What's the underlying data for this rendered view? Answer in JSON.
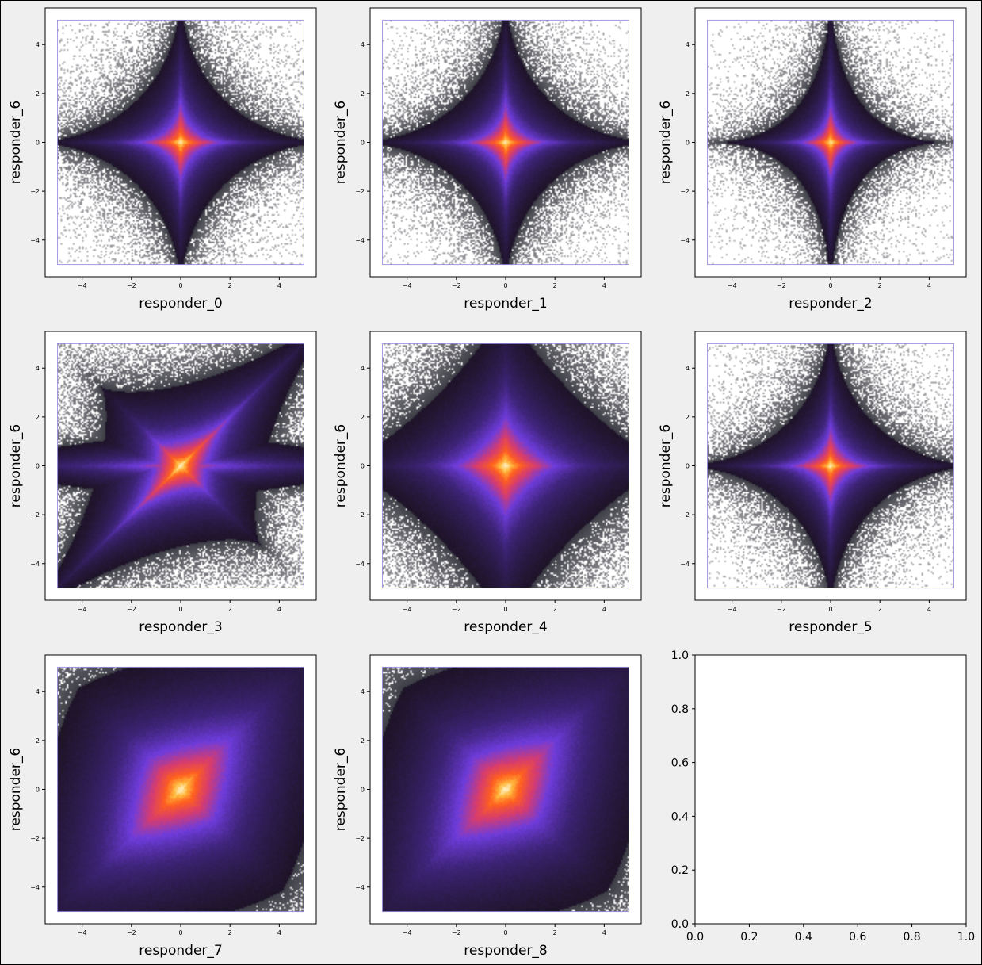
{
  "chart_data": [
    {
      "type": "scatter",
      "xlabel": "responder_0",
      "ylabel": "responder_6",
      "xlim": [
        -5.5,
        5.5
      ],
      "ylim": [
        -5.5,
        5.5
      ],
      "xticks": [
        "−4",
        "−2",
        "0",
        "2",
        "4"
      ],
      "yticks": [
        "−4",
        "−2",
        "0",
        "2",
        "4"
      ],
      "shape": "star",
      "clip": 5,
      "correlation": 0.0
    },
    {
      "type": "scatter",
      "xlabel": "responder_1",
      "ylabel": "responder_6",
      "xlim": [
        -5.5,
        5.5
      ],
      "ylim": [
        -5.5,
        5.5
      ],
      "xticks": [
        "−4",
        "−2",
        "0",
        "2",
        "4"
      ],
      "yticks": [
        "−4",
        "−2",
        "0",
        "2",
        "4"
      ],
      "shape": "star",
      "clip": 5,
      "correlation": 0.0
    },
    {
      "type": "scatter",
      "xlabel": "responder_2",
      "ylabel": "responder_6",
      "xlim": [
        -5.5,
        5.5
      ],
      "ylim": [
        -5.5,
        5.5
      ],
      "xticks": [
        "−4",
        "−2",
        "0",
        "2",
        "4"
      ],
      "yticks": [
        "−4",
        "−2",
        "0",
        "2",
        "4"
      ],
      "shape": "star-vertical",
      "clip": 5,
      "correlation": 0.0
    },
    {
      "type": "scatter",
      "xlabel": "responder_3",
      "ylabel": "responder_6",
      "xlim": [
        -5.5,
        5.5
      ],
      "ylim": [
        -5.5,
        5.5
      ],
      "xticks": [
        "−4",
        "−2",
        "0",
        "2",
        "4"
      ],
      "yticks": [
        "−4",
        "−2",
        "0",
        "2",
        "4"
      ],
      "shape": "diagonal",
      "clip": 5,
      "correlation": 0.6
    },
    {
      "type": "scatter",
      "xlabel": "responder_4",
      "ylabel": "responder_6",
      "xlim": [
        -5.5,
        5.5
      ],
      "ylim": [
        -5.5,
        5.5
      ],
      "xticks": [
        "−4",
        "−2",
        "0",
        "2",
        "4"
      ],
      "yticks": [
        "−4",
        "−2",
        "0",
        "2",
        "4"
      ],
      "shape": "diamond",
      "clip": 5,
      "correlation": 0.0
    },
    {
      "type": "scatter",
      "xlabel": "responder_5",
      "ylabel": "responder_6",
      "xlim": [
        -5.5,
        5.5
      ],
      "ylim": [
        -5.5,
        5.5
      ],
      "xticks": [
        "−4",
        "−2",
        "0",
        "2",
        "4"
      ],
      "yticks": [
        "−4",
        "−2",
        "0",
        "2",
        "4"
      ],
      "shape": "star",
      "clip": 5,
      "correlation": 0.1
    },
    {
      "type": "scatter",
      "xlabel": "responder_7",
      "ylabel": "responder_6",
      "xlim": [
        -5.5,
        5.5
      ],
      "ylim": [
        -5.5,
        5.5
      ],
      "xticks": [
        "−4",
        "−2",
        "0",
        "2",
        "4"
      ],
      "yticks": [
        "−4",
        "−2",
        "0",
        "2",
        "4"
      ],
      "shape": "oval",
      "clip": 5,
      "correlation": 0.5
    },
    {
      "type": "scatter",
      "xlabel": "responder_8",
      "ylabel": "responder_6",
      "xlim": [
        -5.5,
        5.5
      ],
      "ylim": [
        -5.5,
        5.5
      ],
      "xticks": [
        "−4",
        "−2",
        "0",
        "2",
        "4"
      ],
      "yticks": [
        "−4",
        "−2",
        "0",
        "2",
        "4"
      ],
      "shape": "oval",
      "clip": 5,
      "correlation": 0.55
    },
    {
      "type": "scatter",
      "empty": true,
      "xlim": [
        0,
        1
      ],
      "ylim": [
        0,
        1
      ],
      "xticks": [
        "0.0",
        "0.2",
        "0.4",
        "0.6",
        "0.8",
        "1.0"
      ],
      "yticks": [
        "0.0",
        "0.2",
        "0.4",
        "0.6",
        "0.8",
        "1.0"
      ]
    }
  ],
  "colors": {
    "figure_bg": "#efefef",
    "axes_bg": "#ffffff",
    "density_low": "#000000",
    "density_mid_purple": "#5a2db3",
    "density_mid_orange": "#ff5a1e",
    "density_high": "#fffbd6",
    "clip_border_purple": "#8a7fd6",
    "clip_border_red": "#e07a80"
  }
}
